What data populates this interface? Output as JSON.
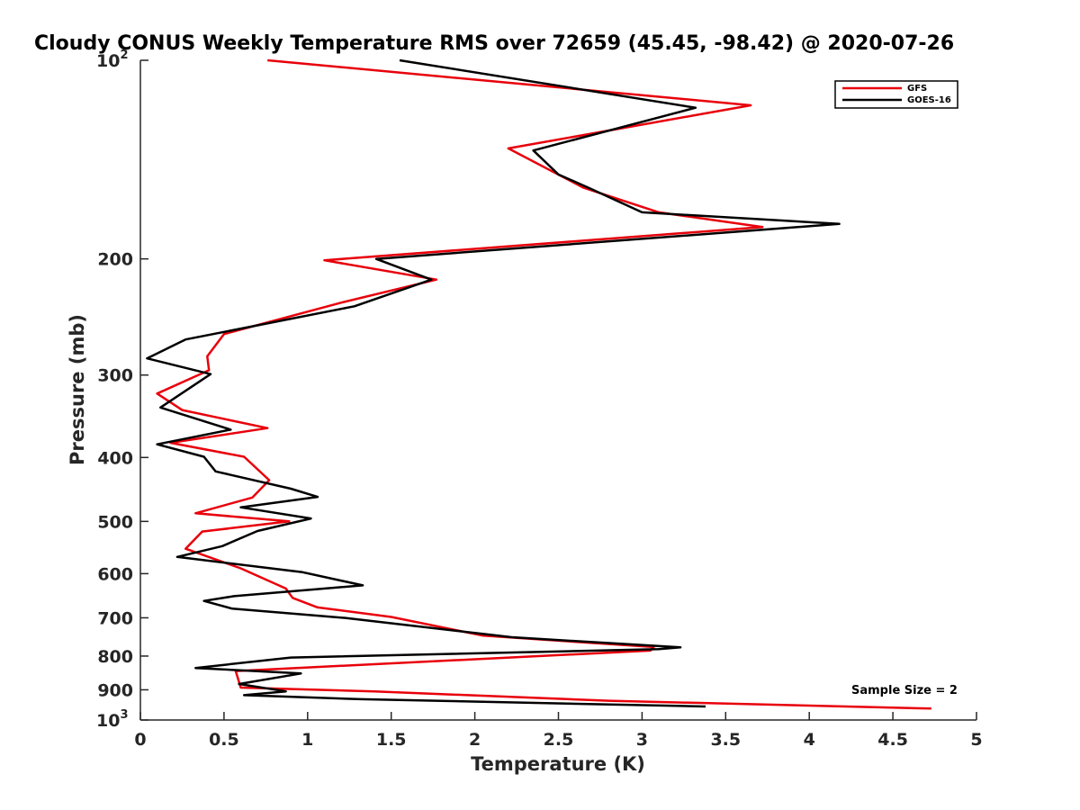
{
  "chart_data": {
    "type": "line",
    "title": "Cloudy CONUS Weekly Temperature RMS over 72659 (45.45, -98.42) @ 2020-07-26",
    "xlabel": "Temperature (K)",
    "ylabel": "Pressure (mb)",
    "xlim": [
      0,
      5
    ],
    "ylim": [
      100,
      1000
    ],
    "y_scale": "log",
    "y_reversed": true,
    "x_ticks": [
      "0",
      "0.5",
      "1",
      "1.5",
      "2",
      "2.5",
      "3",
      "3.5",
      "4",
      "4.5",
      "5"
    ],
    "y_ticks": [
      {
        "value": 100,
        "label": "10",
        "sup": "2"
      },
      {
        "value": 200,
        "label": "200"
      },
      {
        "value": 300,
        "label": "300"
      },
      {
        "value": 400,
        "label": "400"
      },
      {
        "value": 500,
        "label": "500"
      },
      {
        "value": 600,
        "label": "600"
      },
      {
        "value": 700,
        "label": "700"
      },
      {
        "value": 800,
        "label": "800"
      },
      {
        "value": 900,
        "label": "900"
      },
      {
        "value": 1000,
        "label": "10",
        "sup": "3"
      }
    ],
    "grid": false,
    "legend_position": "top-right",
    "annotation": "Sample Size = 2",
    "series": [
      {
        "name": "GFS",
        "color": "#e8000b",
        "points": [
          [
            0.76,
            100
          ],
          [
            3.65,
            117
          ],
          [
            2.2,
            136
          ],
          [
            2.65,
            156
          ],
          [
            3.1,
            170
          ],
          [
            3.72,
            179
          ],
          [
            1.1,
            201
          ],
          [
            1.77,
            215
          ],
          [
            1.2,
            233
          ],
          [
            0.5,
            260
          ],
          [
            0.4,
            281
          ],
          [
            0.41,
            295
          ],
          [
            0.1,
            320
          ],
          [
            0.25,
            339
          ],
          [
            0.76,
            361
          ],
          [
            0.18,
            380
          ],
          [
            0.62,
            399
          ],
          [
            0.77,
            433
          ],
          [
            0.67,
            460
          ],
          [
            0.33,
            486
          ],
          [
            0.89,
            500
          ],
          [
            0.37,
            518
          ],
          [
            0.27,
            550
          ],
          [
            0.6,
            589
          ],
          [
            0.87,
            632
          ],
          [
            0.91,
            653
          ],
          [
            1.06,
            675
          ],
          [
            1.5,
            698
          ],
          [
            2.05,
            745
          ],
          [
            3.07,
            775
          ],
          [
            3.05,
            785
          ],
          [
            0.57,
            843
          ],
          [
            0.6,
            893
          ],
          [
            1.4,
            905
          ],
          [
            1.96,
            917
          ],
          [
            2.8,
            935
          ],
          [
            4.73,
            961
          ]
        ]
      },
      {
        "name": "GOES-16",
        "color": "#000000",
        "points": [
          [
            1.55,
            100
          ],
          [
            3.32,
            118
          ],
          [
            2.35,
            137
          ],
          [
            2.5,
            149
          ],
          [
            2.68,
            156
          ],
          [
            3.0,
            170
          ],
          [
            4.18,
            177
          ],
          [
            1.41,
            200
          ],
          [
            1.74,
            215
          ],
          [
            1.28,
            236
          ],
          [
            0.27,
            265
          ],
          [
            0.04,
            283
          ],
          [
            0.42,
            299
          ],
          [
            0.12,
            336
          ],
          [
            0.54,
            363
          ],
          [
            0.1,
            382
          ],
          [
            0.38,
            399
          ],
          [
            0.45,
            420
          ],
          [
            0.9,
            446
          ],
          [
            1.06,
            459
          ],
          [
            0.6,
            476
          ],
          [
            1.02,
            495
          ],
          [
            0.7,
            517
          ],
          [
            0.49,
            545
          ],
          [
            0.22,
            566
          ],
          [
            0.97,
            597
          ],
          [
            1.33,
            625
          ],
          [
            0.56,
            649
          ],
          [
            0.38,
            660
          ],
          [
            0.55,
            678
          ],
          [
            1.22,
            700
          ],
          [
            2.22,
            749
          ],
          [
            3.23,
            776
          ],
          [
            3.1,
            781
          ],
          [
            0.9,
            804
          ],
          [
            0.33,
            834
          ],
          [
            0.96,
            850
          ],
          [
            0.59,
            882
          ],
          [
            0.87,
            905
          ],
          [
            0.62,
            917
          ],
          [
            1.32,
            930
          ],
          [
            3.38,
            954
          ]
        ]
      }
    ]
  }
}
